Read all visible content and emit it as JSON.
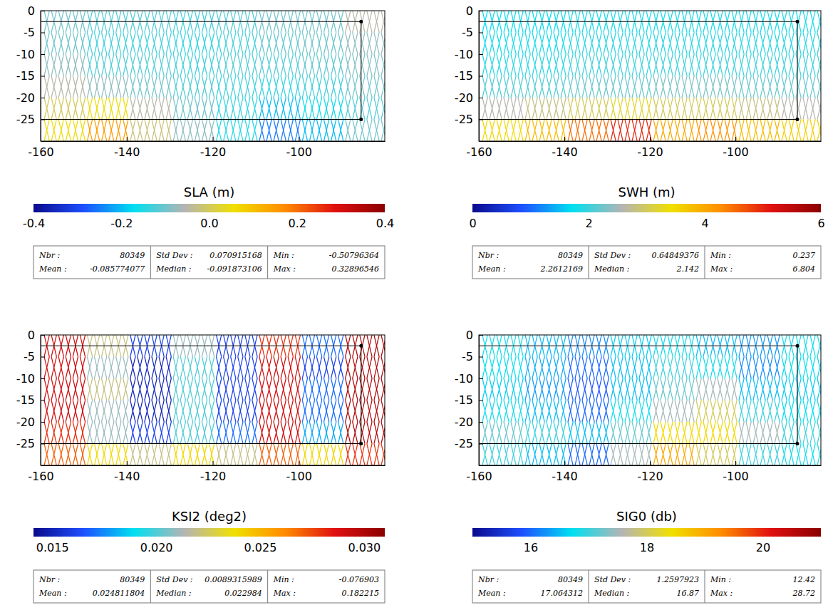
{
  "chart_data": [
    {
      "type": "heatmap",
      "title": "SLA (m)",
      "xlim": [
        -160,
        -80
      ],
      "ylim": [
        -30,
        0
      ],
      "xticks": [
        -160,
        -140,
        -120,
        -100
      ],
      "yticks": [
        0,
        -5,
        -10,
        -15,
        -20,
        -25
      ],
      "lon_bins": [
        -160,
        -150,
        -140,
        -130,
        -120,
        -110,
        -100,
        -90,
        -80
      ],
      "lat_bins": [
        0,
        -5,
        -10,
        -15,
        -20,
        -25,
        -30
      ],
      "values": [
        [
          -0.1,
          -0.12,
          -0.12,
          -0.13,
          -0.12,
          -0.1,
          -0.1,
          -0.05
        ],
        [
          -0.1,
          -0.13,
          -0.13,
          -0.14,
          -0.13,
          -0.11,
          -0.1,
          -0.08
        ],
        [
          -0.08,
          -0.12,
          -0.12,
          -0.13,
          -0.12,
          -0.12,
          -0.11,
          -0.09
        ],
        [
          -0.05,
          -0.08,
          -0.1,
          -0.12,
          -0.13,
          -0.14,
          -0.13,
          -0.1
        ],
        [
          0.0,
          0.05,
          -0.05,
          -0.1,
          -0.14,
          -0.2,
          -0.16,
          -0.12
        ],
        [
          0.05,
          0.15,
          -0.02,
          -0.08,
          -0.15,
          -0.25,
          -0.2,
          -0.1
        ]
      ],
      "region": {
        "lon": [
          -160,
          -85.5
        ],
        "lat": [
          -2.5,
          -25
        ]
      },
      "colorbar_range": [
        -0.4,
        0.4
      ],
      "colorbar_ticks": [
        -0.4,
        -0.2,
        {
          "value": 0,
          "label": "0.0"
        },
        0.2,
        0.4
      ],
      "stats": [
        {
          "label": "Nbr :",
          "value": 80349
        },
        {
          "label": "Mean :",
          "value": -0.085774077
        },
        {
          "label": "Std Dev :",
          "value": 0.070915168
        },
        {
          "label": "Median :",
          "value": -0.091873106
        },
        {
          "label": "Min :",
          "value": -0.50796364
        },
        {
          "label": "Max :",
          "value": 0.32896546
        }
      ]
    },
    {
      "type": "heatmap",
      "title": "SWH (m)",
      "xlim": [
        -160,
        -80
      ],
      "ylim": [
        -30,
        0
      ],
      "xticks": [
        -160,
        -140,
        -120,
        -100
      ],
      "yticks": [
        0,
        -5,
        -10,
        -15,
        -20,
        -25
      ],
      "lon_bins": [
        -160,
        -150,
        -140,
        -130,
        -120,
        -110,
        -100,
        -90,
        -80
      ],
      "lat_bins": [
        0,
        -5,
        -10,
        -15,
        -20,
        -25,
        -30
      ],
      "values": [
        [
          1.7,
          1.7,
          1.8,
          1.8,
          1.8,
          1.8,
          1.8,
          1.8
        ],
        [
          1.8,
          1.8,
          1.9,
          1.9,
          1.9,
          1.9,
          1.9,
          1.9
        ],
        [
          1.9,
          1.9,
          2.0,
          2.0,
          2.0,
          2.0,
          2.0,
          2.0
        ],
        [
          2.1,
          2.1,
          2.2,
          2.2,
          2.3,
          2.3,
          2.2,
          2.2
        ],
        [
          2.6,
          2.8,
          3.0,
          3.2,
          3.0,
          3.0,
          2.8,
          2.6
        ],
        [
          3.5,
          3.8,
          4.5,
          5.0,
          4.0,
          4.2,
          3.8,
          3.6
        ]
      ],
      "region": {
        "lon": [
          -160,
          -85.5
        ],
        "lat": [
          -2.5,
          -25
        ]
      },
      "colorbar_range": [
        0,
        6
      ],
      "colorbar_ticks": [
        0,
        2,
        4,
        6
      ],
      "stats": [
        {
          "label": "Nbr :",
          "value": 80349
        },
        {
          "label": "Mean :",
          "value": 2.2612169
        },
        {
          "label": "Std Dev :",
          "value": 0.64849376
        },
        {
          "label": "Median :",
          "value": 2.142
        },
        {
          "label": "Min :",
          "value": 0.237
        },
        {
          "label": "Max :",
          "value": 6.804
        }
      ]
    },
    {
      "type": "heatmap",
      "title": "KSI2 (deg2)",
      "xlim": [
        -160,
        -80
      ],
      "ylim": [
        -30,
        0
      ],
      "xticks": [
        -160,
        -140,
        -120,
        -100
      ],
      "yticks": [
        0,
        -5,
        -10,
        -15,
        -20,
        -25
      ],
      "lon_bins": [
        -160,
        -150,
        -140,
        -130,
        -120,
        -110,
        -100,
        -90,
        -80
      ],
      "lat_bins": [
        0,
        -5,
        -10,
        -15,
        -20,
        -25,
        -30
      ],
      "values": [
        [
          0.029,
          0.022,
          0.016,
          0.021,
          0.016,
          0.028,
          0.017,
          0.03
        ],
        [
          0.029,
          0.021,
          0.015,
          0.02,
          0.016,
          0.029,
          0.016,
          0.03
        ],
        [
          0.029,
          0.022,
          0.015,
          0.02,
          0.016,
          0.029,
          0.017,
          0.03
        ],
        [
          0.029,
          0.021,
          0.015,
          0.02,
          0.016,
          0.029,
          0.017,
          0.03
        ],
        [
          0.028,
          0.021,
          0.016,
          0.02,
          0.017,
          0.029,
          0.018,
          0.03
        ],
        [
          0.027,
          0.024,
          0.022,
          0.024,
          0.022,
          0.027,
          0.024,
          0.028
        ]
      ],
      "region": {
        "lon": [
          -160,
          -85.5
        ],
        "lat": [
          -2.5,
          -25
        ]
      },
      "colorbar_range": [
        0.0141,
        0.031
      ],
      "colorbar_ticks": [
        0.015,
        {
          "value": 0.02,
          "label": "0.020"
        },
        0.025,
        {
          "value": 0.03,
          "label": "0.030"
        }
      ],
      "stats": [
        {
          "label": "Nbr :",
          "value": 80349
        },
        {
          "label": "Mean :",
          "value": 0.024811804
        },
        {
          "label": "Std Dev :",
          "value": 0.0089315989
        },
        {
          "label": "Median :",
          "value": 0.022984
        },
        {
          "label": "Min :",
          "value": -0.076903
        },
        {
          "label": "Max :",
          "value": 0.182215
        }
      ]
    },
    {
      "type": "heatmap",
      "title": "SIG0 (db)",
      "xlim": [
        -160,
        -80
      ],
      "ylim": [
        -30,
        0
      ],
      "xticks": [
        -160,
        -140,
        -120,
        -100
      ],
      "yticks": [
        0,
        -5,
        -10,
        -15,
        -20,
        -25
      ],
      "lon_bins": [
        -160,
        -150,
        -140,
        -130,
        -120,
        -110,
        -100,
        -90,
        -80
      ],
      "lat_bins": [
        0,
        -5,
        -10,
        -15,
        -20,
        -25,
        -30
      ],
      "values": [
        [
          16.8,
          16.5,
          16.2,
          16.6,
          16.8,
          16.5,
          16.3,
          16.8
        ],
        [
          16.7,
          16.4,
          16.0,
          16.5,
          17.0,
          16.8,
          16.2,
          16.7
        ],
        [
          16.6,
          16.3,
          15.9,
          16.5,
          17.2,
          17.5,
          16.5,
          16.6
        ],
        [
          16.8,
          16.5,
          16.0,
          16.8,
          17.5,
          18.0,
          17.0,
          16.7
        ],
        [
          17.2,
          17.0,
          16.5,
          17.2,
          18.5,
          18.5,
          17.5,
          17.0
        ],
        [
          17.0,
          16.5,
          16.0,
          17.5,
          19.0,
          18.0,
          17.0,
          16.8
        ]
      ],
      "region": {
        "lon": [
          -160,
          -85.5
        ],
        "lat": [
          -2.5,
          -25
        ]
      },
      "colorbar_range": [
        15,
        21
      ],
      "colorbar_ticks": [
        16,
        18,
        20
      ],
      "stats": [
        {
          "label": "Nbr :",
          "value": 80349
        },
        {
          "label": "Mean :",
          "value": 17.064312
        },
        {
          "label": "Std Dev :",
          "value": 1.2597923
        },
        {
          "label": "Median :",
          "value": 16.87
        },
        {
          "label": "Min :",
          "value": 12.42
        },
        {
          "label": "Max :",
          "value": 28.72
        }
      ]
    }
  ]
}
